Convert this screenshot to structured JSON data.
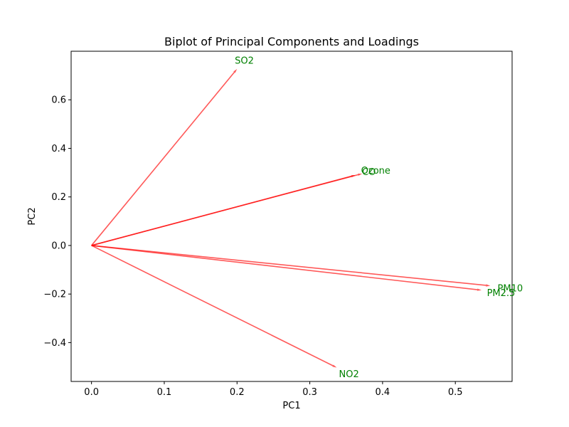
{
  "chart_data": {
    "type": "scatter",
    "subtype": "biplot-loadings",
    "title": "Biplot of Principal Components and Loadings",
    "xlabel": "PC1",
    "ylabel": "PC2",
    "xlim": [
      -0.028,
      0.578
    ],
    "ylim": [
      -0.56,
      0.8
    ],
    "xticks": [
      0.0,
      0.1,
      0.2,
      0.3,
      0.4,
      0.5
    ],
    "xtick_labels": [
      "0.0",
      "0.1",
      "0.2",
      "0.3",
      "0.4",
      "0.5"
    ],
    "yticks": [
      -0.4,
      -0.2,
      0.0,
      0.2,
      0.4,
      0.6
    ],
    "ytick_labels": [
      "−0.4",
      "−0.2",
      "0.0",
      "0.2",
      "0.4",
      "0.6"
    ],
    "grid": false,
    "legend": "none",
    "colors": {
      "vector": "#ff0000",
      "vector_alpha": 0.65,
      "label": "#008000"
    },
    "vectors": [
      {
        "name": "SO2",
        "x": 0.2,
        "y": 0.727
      },
      {
        "name": "CO",
        "x": 0.363,
        "y": 0.29
      },
      {
        "name": "Ozone",
        "x": 0.372,
        "y": 0.296
      },
      {
        "name": "PM10",
        "x": 0.548,
        "y": -0.166
      },
      {
        "name": "PM2.5",
        "x": 0.536,
        "y": -0.184
      },
      {
        "name": "NO2",
        "x": 0.337,
        "y": -0.503
      }
    ],
    "label_scale": 1.05
  }
}
